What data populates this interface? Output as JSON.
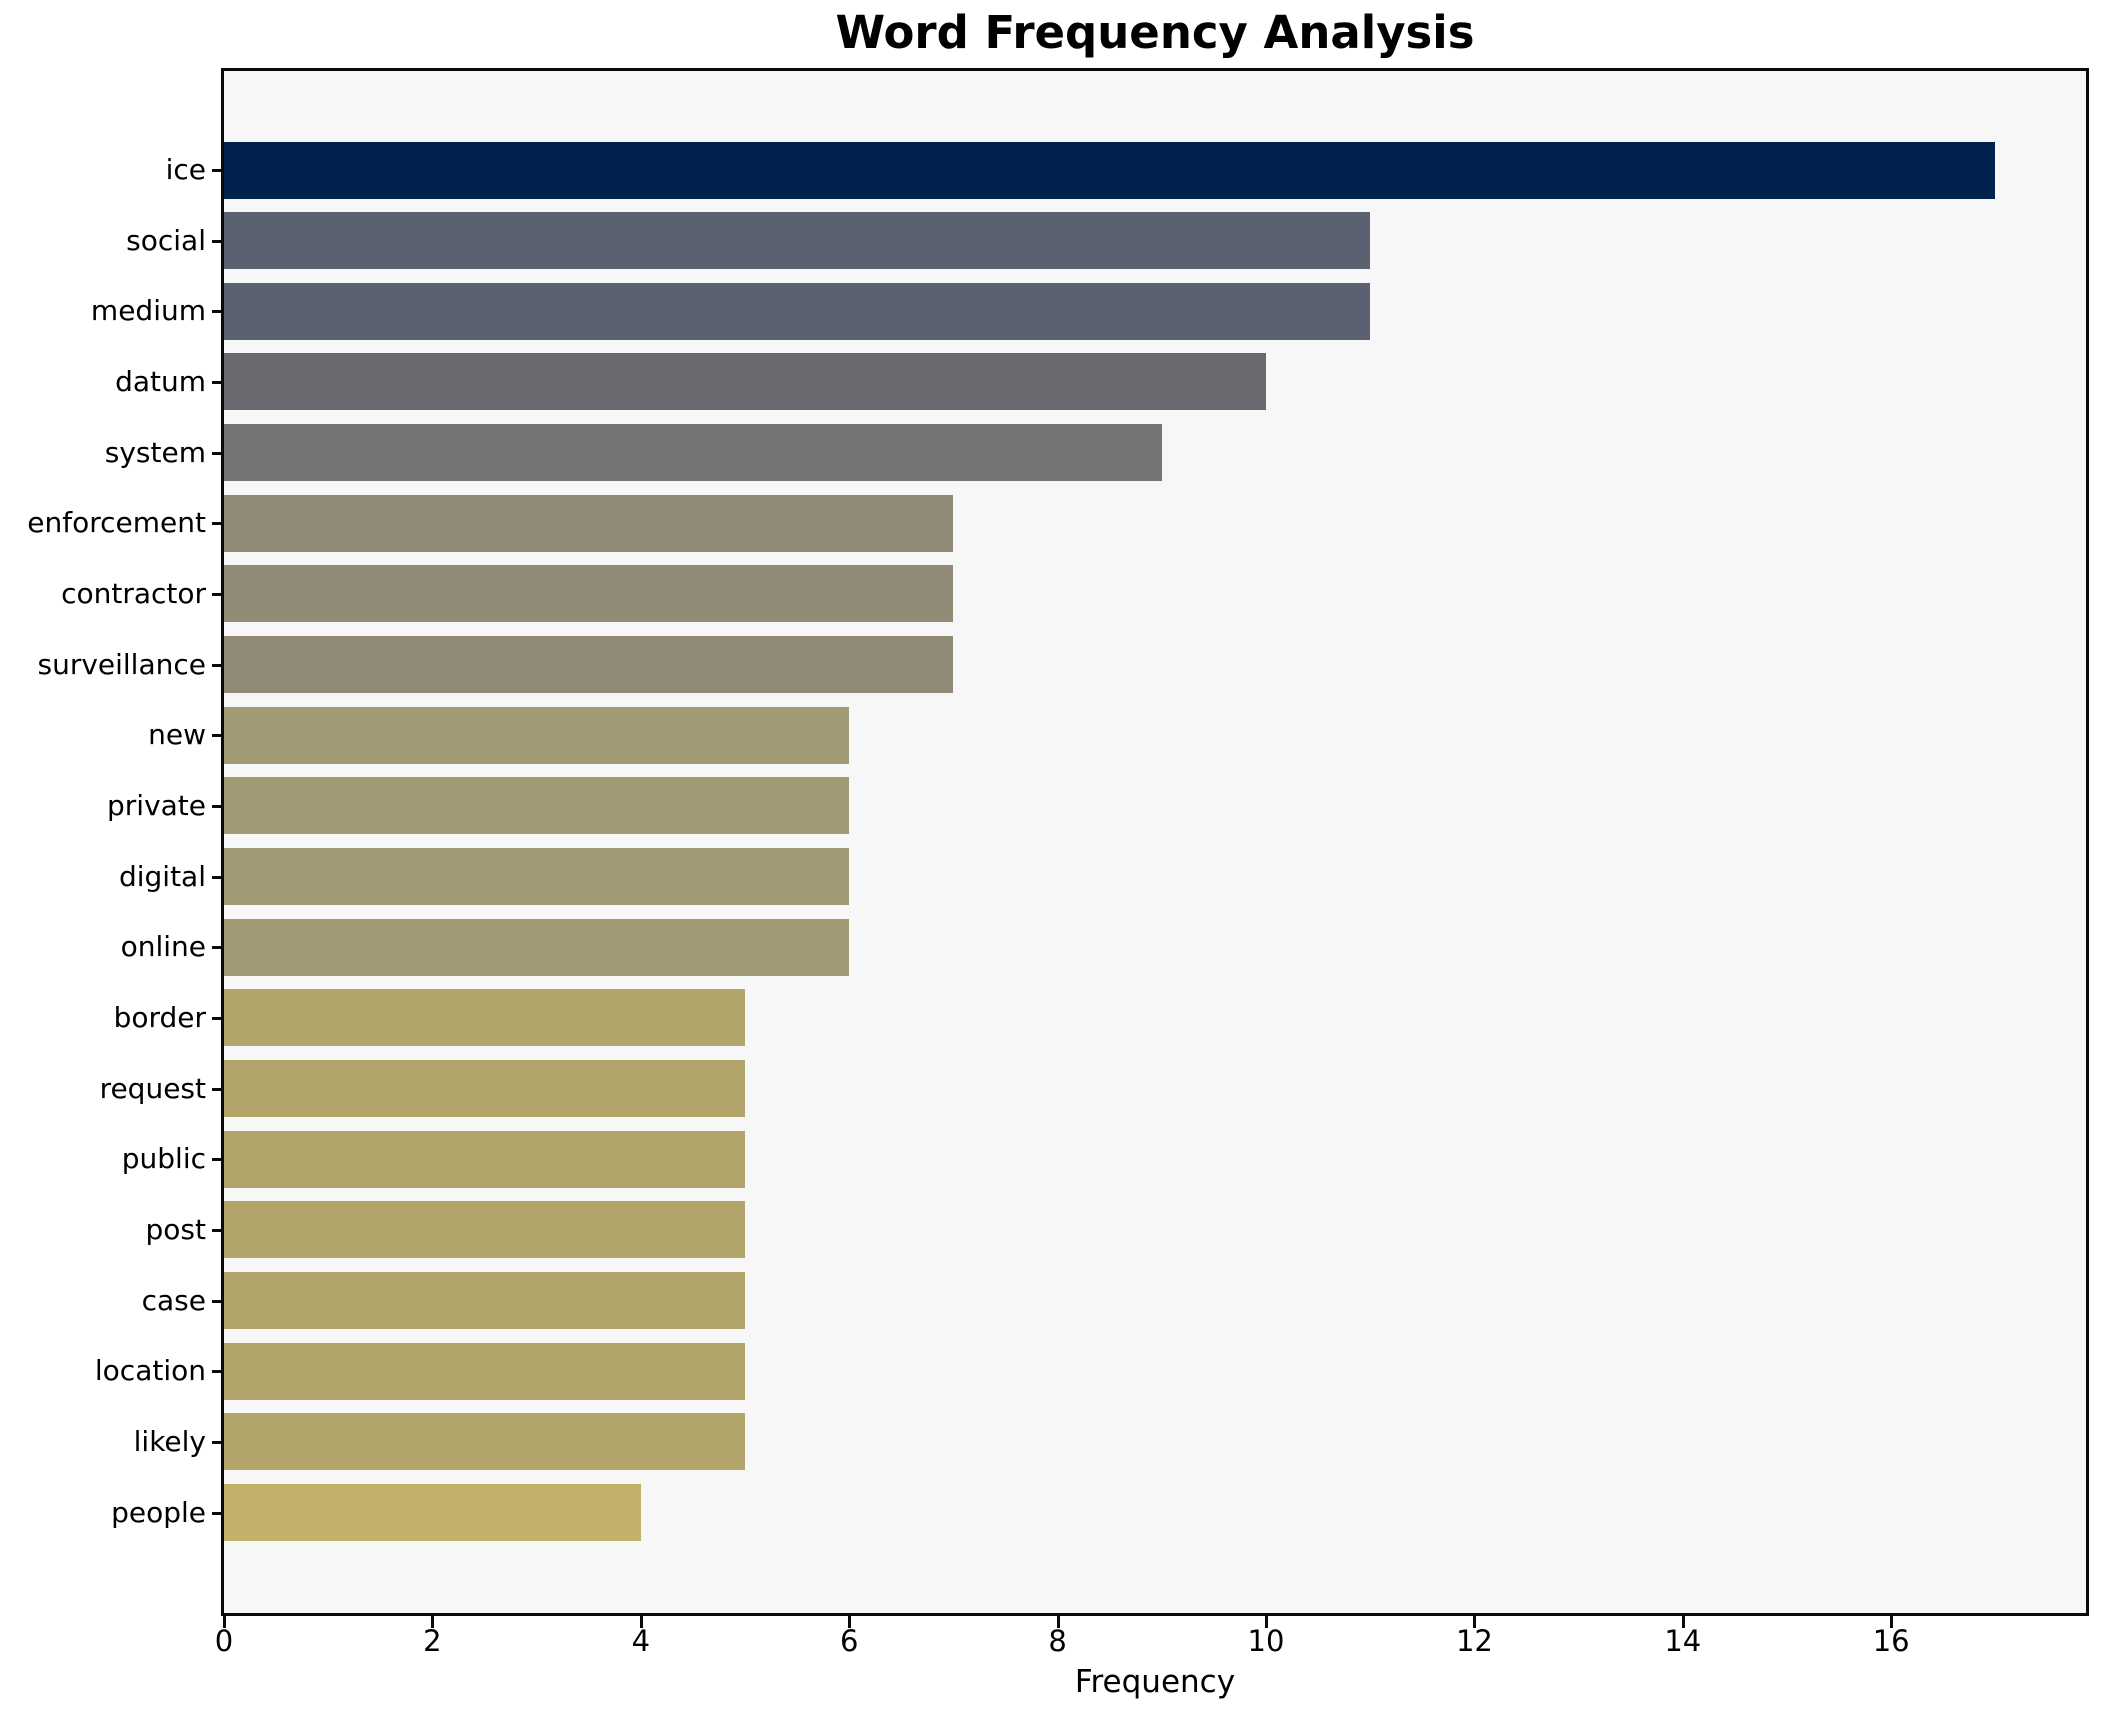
{
  "figure": {
    "title": "Word Frequency Analysis",
    "xlabel": "Frequency"
  },
  "chart_data": {
    "type": "bar",
    "orientation": "horizontal",
    "title": "Word Frequency Analysis",
    "xlabel": "Frequency",
    "ylabel": "",
    "categories": [
      "ice",
      "social",
      "medium",
      "datum",
      "system",
      "enforcement",
      "contractor",
      "surveillance",
      "new",
      "private",
      "digital",
      "online",
      "border",
      "request",
      "public",
      "post",
      "case",
      "location",
      "likely",
      "people"
    ],
    "values": [
      17,
      11,
      11,
      10,
      9,
      7,
      7,
      7,
      6,
      6,
      6,
      6,
      5,
      5,
      5,
      5,
      5,
      5,
      5,
      4
    ],
    "bar_colors": [
      "#02224e",
      "#5a6170",
      "#5a6170",
      "#686a70",
      "#757576",
      "#918a77",
      "#918a77",
      "#918a77",
      "#a19a74",
      "#a19a74",
      "#a19a74",
      "#a19a74",
      "#b1a56c",
      "#b1a56c",
      "#b1a56c",
      "#b1a56c",
      "#b1a56c",
      "#b1a56c",
      "#b1a56c",
      "#c2b169"
    ],
    "xticks": [
      0,
      2,
      4,
      6,
      8,
      10,
      12,
      14,
      16
    ],
    "xlim": [
      0,
      17.85
    ],
    "grid": false,
    "legend": null,
    "colors": {
      "plot_background": "#f7f7f8",
      "page_background": "#ffffff",
      "axis_border": "#0a0a0a",
      "text": "#000000"
    }
  }
}
